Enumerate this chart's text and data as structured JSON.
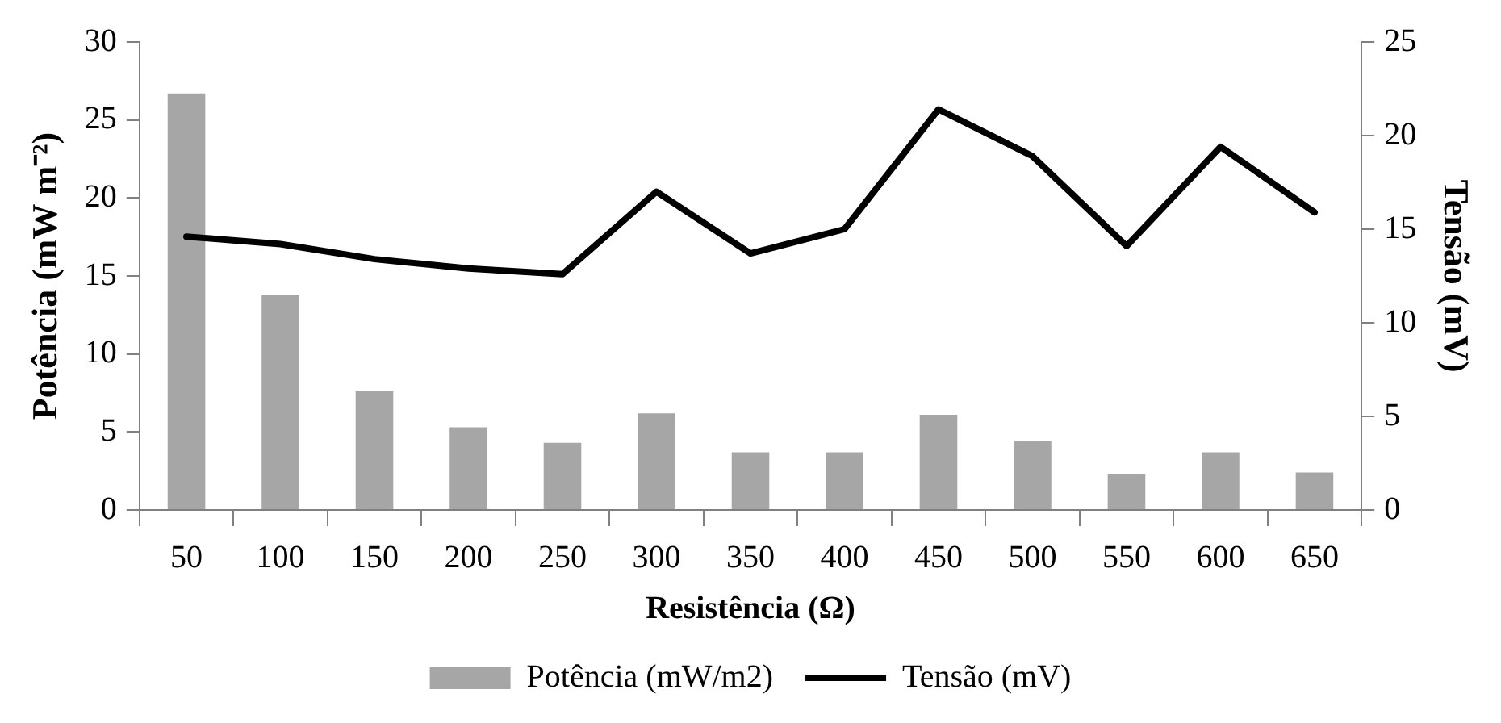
{
  "chart_data": {
    "type": "bar",
    "xlabel": "Resistência (Ω)",
    "ylabel": "Potência (mW m⁻²)",
    "y2label": "Tensão (mV)",
    "categories": [
      "50",
      "100",
      "150",
      "200",
      "250",
      "300",
      "350",
      "400",
      "450",
      "500",
      "550",
      "600",
      "650"
    ],
    "series": [
      {
        "name": "Potência (mW/m2)",
        "color": "#a6a6a6",
        "values": [
          26.7,
          13.8,
          7.6,
          5.3,
          4.3,
          6.2,
          3.7,
          3.7,
          6.1,
          4.4,
          2.3,
          3.7,
          2.4
        ]
      },
      {
        "name": "Tensão (mV)",
        "type": "line",
        "axis": "y2",
        "color": "#000000",
        "values": [
          14.6,
          14.2,
          13.4,
          12.9,
          12.6,
          17.0,
          13.7,
          15.0,
          21.4,
          18.9,
          14.1,
          19.4,
          15.9
        ]
      }
    ],
    "ylim": [
      0,
      30
    ],
    "yticks": [
      0,
      5,
      10,
      15,
      20,
      25,
      30
    ],
    "y2lim": [
      0,
      25
    ],
    "y2ticks": [
      0,
      5,
      10,
      15,
      20,
      25
    ],
    "grid": false,
    "legend": "bottom",
    "marker": "none",
    "line_style": "solid"
  }
}
